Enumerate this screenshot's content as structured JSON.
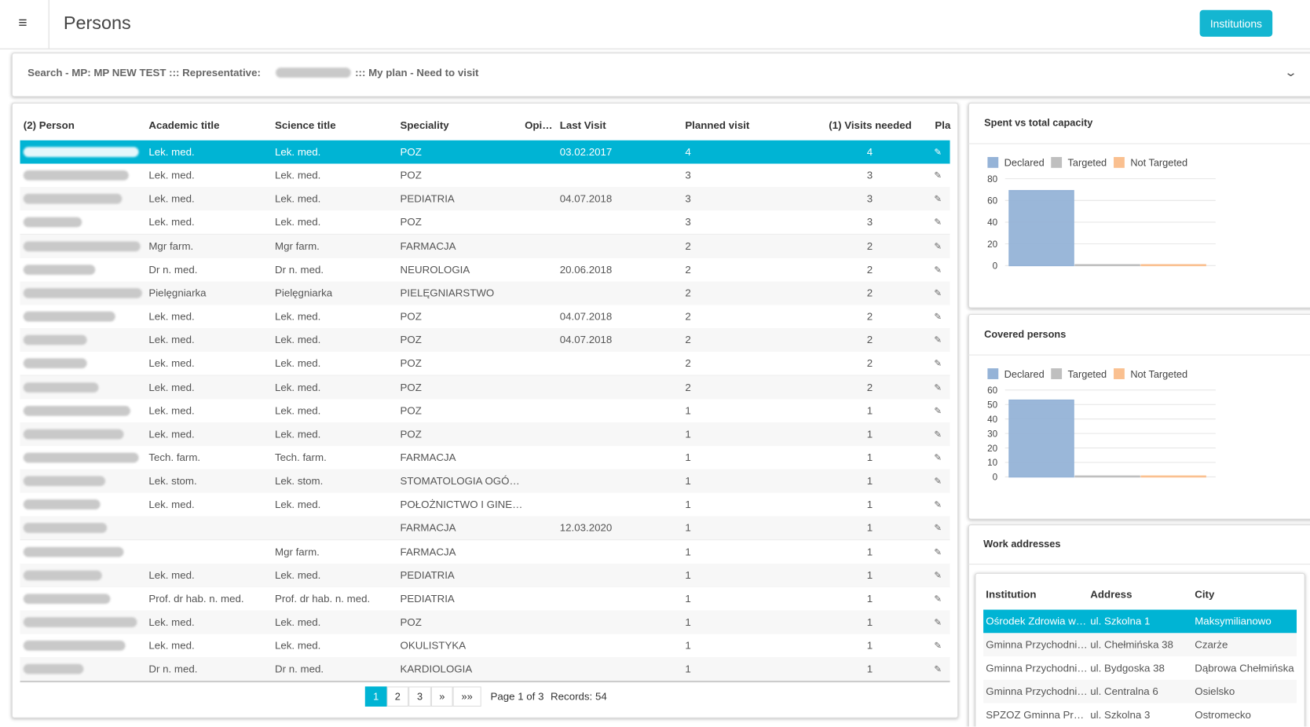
{
  "header": {
    "title": "Persons",
    "button": "Institutions"
  },
  "search": {
    "prefix": "Search - MP: MP NEW TEST ::: Representative:",
    "suffix": "::: My plan - Need to visit"
  },
  "persons_table": {
    "columns": [
      "(2) Person",
      "Academic title",
      "Science title",
      "Speciality",
      "Opi…",
      "Last Visit",
      "Planned visit",
      "(1) Visits needed",
      "Pla"
    ],
    "rows": [
      [
        "Lek. med.",
        "Lek. med.",
        "POZ",
        "03.02.2017",
        4,
        4
      ],
      [
        "Lek. med.",
        "Lek. med.",
        "POZ",
        null,
        3,
        3
      ],
      [
        "Lek. med.",
        "Lek. med.",
        "PEDIATRIA",
        "04.07.2018",
        3,
        3
      ],
      [
        "Lek. med.",
        "Lek. med.",
        "POZ",
        null,
        3,
        3
      ],
      [
        "Mgr farm.",
        "Mgr farm.",
        "FARMACJA",
        null,
        2,
        2
      ],
      [
        "Dr n. med.",
        "Dr n. med.",
        "NEUROLOGIA",
        "20.06.2018",
        2,
        2
      ],
      [
        "Pielęgniarka",
        "Pielęgniarka",
        "PIELĘGNIARSTWO",
        null,
        2,
        2
      ],
      [
        "Lek. med.",
        "Lek. med.",
        "POZ",
        "04.07.2018",
        2,
        2
      ],
      [
        "Lek. med.",
        "Lek. med.",
        "POZ",
        "04.07.2018",
        2,
        2
      ],
      [
        "Lek. med.",
        "Lek. med.",
        "POZ",
        null,
        2,
        2
      ],
      [
        "Lek. med.",
        "Lek. med.",
        "POZ",
        null,
        2,
        2
      ],
      [
        "Lek. med.",
        "Lek. med.",
        "POZ",
        null,
        1,
        1
      ],
      [
        "Lek. med.",
        "Lek. med.",
        "POZ",
        null,
        1,
        1
      ],
      [
        "Tech. farm.",
        "Tech. farm.",
        "FARMACJA",
        null,
        1,
        1
      ],
      [
        "Lek. stom.",
        "Lek. stom.",
        "STOMATOLOGIA OGÓ…",
        null,
        1,
        1
      ],
      [
        "Lek. med.",
        "Lek. med.",
        "POŁOŻNICTWO I GINE…",
        null,
        1,
        1
      ],
      [
        null,
        null,
        "FARMACJA",
        "12.03.2020",
        1,
        1
      ],
      [
        null,
        "Mgr farm.",
        "FARMACJA",
        null,
        1,
        1
      ],
      [
        "Lek. med.",
        "Lek. med.",
        "PEDIATRIA",
        null,
        1,
        1
      ],
      [
        "Prof. dr hab. n. med.",
        "Prof. dr hab. n. med.",
        "PEDIATRIA",
        null,
        1,
        1
      ],
      [
        "Lek. med.",
        "Lek. med.",
        "POZ",
        null,
        1,
        1
      ],
      [
        "Lek. med.",
        "Lek. med.",
        "OKULISTYKA",
        null,
        1,
        1
      ],
      [
        "Dr n. med.",
        "Dr n. med.",
        "KARDIOLOGIA",
        null,
        1,
        1
      ]
    ],
    "pagination": {
      "pages": [
        1,
        2,
        3,
        "»",
        "»»"
      ],
      "status": "Page 1 of 3",
      "records": "Records: 54"
    }
  },
  "chart_data": [
    {
      "type": "bar",
      "title": "Spent vs total capacity",
      "categories": [
        null
      ],
      "series": [
        {
          "name": "Declared",
          "color": "#95b3d7",
          "values": [
            69
          ]
        },
        {
          "name": "Targeted",
          "color": "#bfbfbf",
          "values": [
            0
          ]
        },
        {
          "name": "Not Targeted",
          "color": "#fac090",
          "values": [
            0
          ]
        }
      ],
      "ylim": [
        0,
        80
      ],
      "yticks": [
        0,
        20,
        40,
        60,
        80
      ],
      "grid": true,
      "legend": "top-left"
    },
    {
      "type": "bar",
      "title": "Covered persons",
      "categories": [
        null
      ],
      "series": [
        {
          "name": "Declared",
          "color": "#95b3d7",
          "values": [
            53
          ]
        },
        {
          "name": "Targeted",
          "color": "#bfbfbf",
          "values": [
            0
          ]
        },
        {
          "name": "Not Targeted",
          "color": "#fac090",
          "values": [
            0
          ]
        }
      ],
      "ylim": [
        0,
        60
      ],
      "yticks": [
        0,
        10,
        20,
        30,
        40,
        50,
        60
      ],
      "grid": true,
      "legend": "top-left"
    }
  ],
  "work_addresses": {
    "title": "Work addresses",
    "columns": [
      "Institution",
      "Address",
      "City"
    ],
    "rows": [
      [
        "Ośrodek Zdrowia w…",
        "ul. Szkolna 1",
        "Maksymilianowo"
      ],
      [
        "Gminna Przychodni…",
        "ul. Chełmińska 38",
        "Czarże"
      ],
      [
        "Gminna Przychodni…",
        "ul. Bydgoska 38",
        "Dąbrowa Chełmińska"
      ],
      [
        "Gminna Przychodni…",
        "ul. Centralna 6",
        "Osielsko"
      ],
      [
        "SPZOZ Gminna Pr…",
        "ul. Szkolna 3",
        "Ostromecko"
      ]
    ]
  }
}
